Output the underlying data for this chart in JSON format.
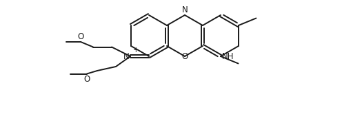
{
  "bg_color": "#ffffff",
  "line_color": "#1a1a1a",
  "line_width": 1.4,
  "font_size": 8.5,
  "fig_width": 5.25,
  "fig_height": 1.85,
  "dpi": 100,
  "xlim": [
    0,
    525
  ],
  "ylim": [
    0,
    185
  ]
}
